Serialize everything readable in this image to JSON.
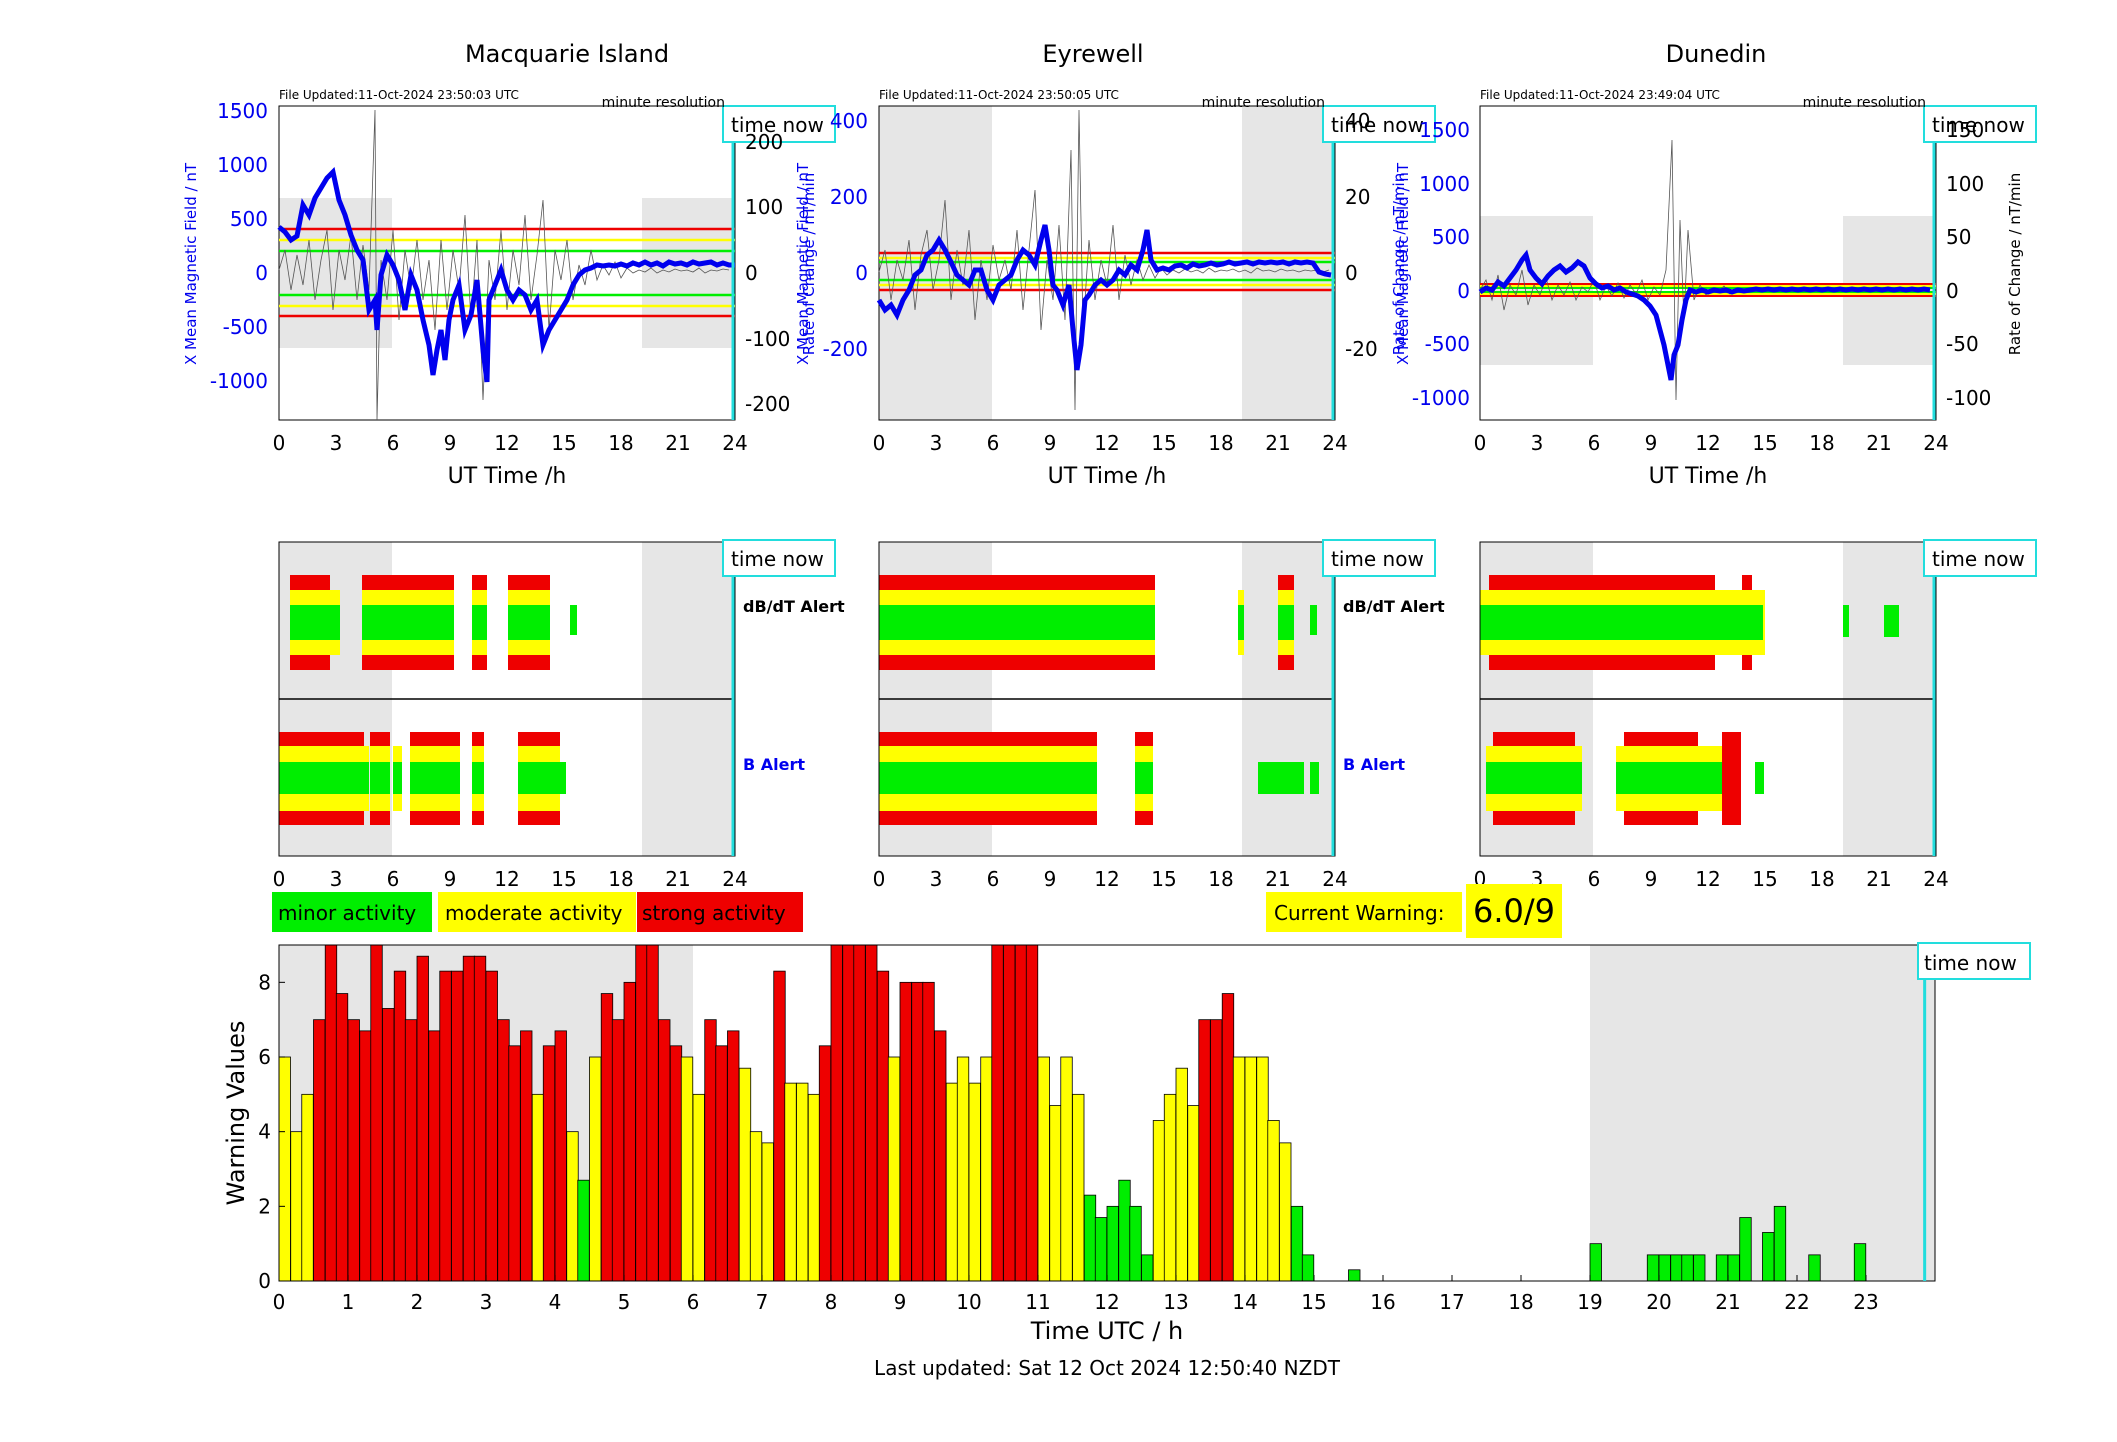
{
  "panels": [
    {
      "title": "Macquarie Island",
      "file_updated": "File Updated:11-Oct-2024 23:50:03 UTC",
      "resolution": "minute resolution",
      "left_ylabel": "X Mean Magnetic Field / nT",
      "right_ylabel": "Rate of Change / nT/min",
      "xlabel": "UT Time /h",
      "left_ticks": [
        "1500",
        "1000",
        "500",
        "0",
        "-500",
        "-1000"
      ],
      "right_ticks": [
        "200",
        "100",
        "0",
        "-100",
        "-200"
      ],
      "x_ticks": [
        "0",
        "3",
        "6",
        "9",
        "12",
        "15",
        "18",
        "21",
        "24"
      ],
      "dbdt_label": "dB/dT Alert",
      "b_label": "B Alert"
    },
    {
      "title": "Eyrewell",
      "file_updated": "File Updated:11-Oct-2024 23:50:05 UTC",
      "resolution": "minute resolution",
      "left_ylabel": "X Mean Magnetic Field / nT",
      "right_ylabel": "Rate of Change / nT/min",
      "xlabel": "UT Time /h",
      "left_ticks": [
        "400",
        "200",
        "0",
        "-200"
      ],
      "right_ticks": [
        "40",
        "20",
        "0",
        "-20"
      ],
      "x_ticks": [
        "0",
        "3",
        "6",
        "9",
        "12",
        "15",
        "18",
        "21",
        "24"
      ],
      "dbdt_label": "dB/dT Alert",
      "b_label": "B Alert"
    },
    {
      "title": "Dunedin",
      "file_updated": "File Updated:11-Oct-2024 23:49:04 UTC",
      "resolution": "minute resolution",
      "left_ylabel": "X Mean Magnetic Field / nT",
      "right_ylabel": "Rate of Change / nT/min",
      "xlabel": "UT Time /h",
      "left_ticks": [
        "1500",
        "1000",
        "500",
        "0",
        "-500",
        "-1000"
      ],
      "right_ticks": [
        "150",
        "100",
        "50",
        "0",
        "-50",
        "-100"
      ],
      "x_ticks": [
        "0",
        "3",
        "6",
        "9",
        "12",
        "15",
        "18",
        "21",
        "24"
      ],
      "dbdt_label": "dB/dT Alert",
      "b_label": "B Alert"
    }
  ],
  "time_now_label": "time now",
  "legend": {
    "minor": "minor activity",
    "moderate": "moderate activity",
    "strong": "strong activity"
  },
  "warning": {
    "label": "Current Warning:",
    "value": "6.0/9"
  },
  "colors": {
    "minor": "#00ee00",
    "moderate": "#ffff00",
    "strong": "#ee0000",
    "field_line": "#0000ee",
    "time_now": "#22dddd",
    "night_shading": "#e6e6e6"
  },
  "footer": {
    "last_updated": "Last updated: Sat 12 Oct 2024 12:50:40 NZDT"
  },
  "chart_data": [
    {
      "type": "bar",
      "ylabel": "Warning Values",
      "xlabel": "Time UTC / h",
      "ylim": [
        0,
        9
      ],
      "xlim": [
        0,
        24
      ],
      "x_ticks": [
        "0",
        "1",
        "2",
        "3",
        "4",
        "5",
        "6",
        "7",
        "8",
        "9",
        "10",
        "11",
        "12",
        "13",
        "14",
        "15",
        "16",
        "17",
        "18",
        "19",
        "20",
        "21",
        "22",
        "23"
      ],
      "y_ticks": [
        "0",
        "2",
        "4",
        "6",
        "8"
      ],
      "bin_hours": 0.1667,
      "night_shading_hours": [
        [
          0,
          6
        ],
        [
          19,
          24
        ]
      ],
      "time_now_hour": 23.85,
      "bars": [
        {
          "x": 0.0,
          "v": 6.0,
          "c": "moderate"
        },
        {
          "x": 0.17,
          "v": 4.0,
          "c": "moderate"
        },
        {
          "x": 0.33,
          "v": 5.0,
          "c": "moderate"
        },
        {
          "x": 0.5,
          "v": 7.0,
          "c": "strong"
        },
        {
          "x": 0.67,
          "v": 9.0,
          "c": "strong"
        },
        {
          "x": 0.83,
          "v": 7.7,
          "c": "strong"
        },
        {
          "x": 1.0,
          "v": 7.0,
          "c": "strong"
        },
        {
          "x": 1.17,
          "v": 6.7,
          "c": "strong"
        },
        {
          "x": 1.33,
          "v": 9.0,
          "c": "strong"
        },
        {
          "x": 1.5,
          "v": 7.3,
          "c": "strong"
        },
        {
          "x": 1.67,
          "v": 8.3,
          "c": "strong"
        },
        {
          "x": 1.83,
          "v": 7.0,
          "c": "strong"
        },
        {
          "x": 2.0,
          "v": 8.7,
          "c": "strong"
        },
        {
          "x": 2.17,
          "v": 6.7,
          "c": "strong"
        },
        {
          "x": 2.33,
          "v": 8.3,
          "c": "strong"
        },
        {
          "x": 2.5,
          "v": 8.3,
          "c": "strong"
        },
        {
          "x": 2.67,
          "v": 8.7,
          "c": "strong"
        },
        {
          "x": 2.83,
          "v": 8.7,
          "c": "strong"
        },
        {
          "x": 3.0,
          "v": 8.3,
          "c": "strong"
        },
        {
          "x": 3.17,
          "v": 7.0,
          "c": "strong"
        },
        {
          "x": 3.33,
          "v": 6.3,
          "c": "strong"
        },
        {
          "x": 3.5,
          "v": 6.7,
          "c": "strong"
        },
        {
          "x": 3.67,
          "v": 5.0,
          "c": "moderate"
        },
        {
          "x": 3.83,
          "v": 6.3,
          "c": "strong"
        },
        {
          "x": 4.0,
          "v": 6.7,
          "c": "strong"
        },
        {
          "x": 4.17,
          "v": 4.0,
          "c": "moderate"
        },
        {
          "x": 4.33,
          "v": 2.7,
          "c": "minor"
        },
        {
          "x": 4.5,
          "v": 6.0,
          "c": "moderate"
        },
        {
          "x": 4.67,
          "v": 7.7,
          "c": "strong"
        },
        {
          "x": 4.83,
          "v": 7.0,
          "c": "strong"
        },
        {
          "x": 5.0,
          "v": 8.0,
          "c": "strong"
        },
        {
          "x": 5.17,
          "v": 9.0,
          "c": "strong"
        },
        {
          "x": 5.33,
          "v": 9.0,
          "c": "strong"
        },
        {
          "x": 5.5,
          "v": 7.0,
          "c": "strong"
        },
        {
          "x": 5.67,
          "v": 6.3,
          "c": "strong"
        },
        {
          "x": 5.83,
          "v": 6.0,
          "c": "moderate"
        },
        {
          "x": 6.0,
          "v": 5.0,
          "c": "moderate"
        },
        {
          "x": 6.17,
          "v": 7.0,
          "c": "strong"
        },
        {
          "x": 6.33,
          "v": 6.3,
          "c": "strong"
        },
        {
          "x": 6.5,
          "v": 6.7,
          "c": "strong"
        },
        {
          "x": 6.67,
          "v": 5.7,
          "c": "moderate"
        },
        {
          "x": 6.83,
          "v": 4.0,
          "c": "moderate"
        },
        {
          "x": 7.0,
          "v": 3.7,
          "c": "moderate"
        },
        {
          "x": 7.17,
          "v": 8.3,
          "c": "strong"
        },
        {
          "x": 7.33,
          "v": 5.3,
          "c": "moderate"
        },
        {
          "x": 7.5,
          "v": 5.3,
          "c": "moderate"
        },
        {
          "x": 7.67,
          "v": 5.0,
          "c": "moderate"
        },
        {
          "x": 7.83,
          "v": 6.3,
          "c": "strong"
        },
        {
          "x": 8.0,
          "v": 9.0,
          "c": "strong"
        },
        {
          "x": 8.17,
          "v": 9.0,
          "c": "strong"
        },
        {
          "x": 8.33,
          "v": 9.0,
          "c": "strong"
        },
        {
          "x": 8.5,
          "v": 9.0,
          "c": "strong"
        },
        {
          "x": 8.67,
          "v": 8.3,
          "c": "strong"
        },
        {
          "x": 8.83,
          "v": 6.0,
          "c": "moderate"
        },
        {
          "x": 9.0,
          "v": 8.0,
          "c": "strong"
        },
        {
          "x": 9.17,
          "v": 8.0,
          "c": "strong"
        },
        {
          "x": 9.33,
          "v": 8.0,
          "c": "strong"
        },
        {
          "x": 9.5,
          "v": 6.7,
          "c": "strong"
        },
        {
          "x": 9.67,
          "v": 5.3,
          "c": "moderate"
        },
        {
          "x": 9.83,
          "v": 6.0,
          "c": "moderate"
        },
        {
          "x": 10.0,
          "v": 5.3,
          "c": "moderate"
        },
        {
          "x": 10.17,
          "v": 6.0,
          "c": "moderate"
        },
        {
          "x": 10.33,
          "v": 9.0,
          "c": "strong"
        },
        {
          "x": 10.5,
          "v": 9.0,
          "c": "strong"
        },
        {
          "x": 10.67,
          "v": 9.0,
          "c": "strong"
        },
        {
          "x": 10.83,
          "v": 9.0,
          "c": "strong"
        },
        {
          "x": 11.0,
          "v": 6.0,
          "c": "moderate"
        },
        {
          "x": 11.17,
          "v": 4.7,
          "c": "moderate"
        },
        {
          "x": 11.33,
          "v": 6.0,
          "c": "moderate"
        },
        {
          "x": 11.5,
          "v": 5.0,
          "c": "moderate"
        },
        {
          "x": 11.67,
          "v": 2.3,
          "c": "minor"
        },
        {
          "x": 11.83,
          "v": 1.7,
          "c": "minor"
        },
        {
          "x": 12.0,
          "v": 2.0,
          "c": "minor"
        },
        {
          "x": 12.17,
          "v": 2.7,
          "c": "minor"
        },
        {
          "x": 12.33,
          "v": 2.0,
          "c": "minor"
        },
        {
          "x": 12.5,
          "v": 0.7,
          "c": "minor"
        },
        {
          "x": 12.67,
          "v": 4.3,
          "c": "moderate"
        },
        {
          "x": 12.83,
          "v": 5.0,
          "c": "moderate"
        },
        {
          "x": 13.0,
          "v": 5.7,
          "c": "moderate"
        },
        {
          "x": 13.17,
          "v": 4.7,
          "c": "moderate"
        },
        {
          "x": 13.33,
          "v": 7.0,
          "c": "strong"
        },
        {
          "x": 13.5,
          "v": 7.0,
          "c": "strong"
        },
        {
          "x": 13.67,
          "v": 7.7,
          "c": "strong"
        },
        {
          "x": 13.83,
          "v": 6.0,
          "c": "moderate"
        },
        {
          "x": 14.0,
          "v": 6.0,
          "c": "moderate"
        },
        {
          "x": 14.17,
          "v": 6.0,
          "c": "moderate"
        },
        {
          "x": 14.33,
          "v": 4.3,
          "c": "moderate"
        },
        {
          "x": 14.5,
          "v": 3.7,
          "c": "moderate"
        },
        {
          "x": 14.67,
          "v": 2.0,
          "c": "minor"
        },
        {
          "x": 14.83,
          "v": 0.7,
          "c": "minor"
        },
        {
          "x": 15.5,
          "v": 0.3,
          "c": "minor"
        },
        {
          "x": 19.0,
          "v": 1.0,
          "c": "minor"
        },
        {
          "x": 19.83,
          "v": 0.7,
          "c": "minor"
        },
        {
          "x": 20.0,
          "v": 0.7,
          "c": "minor"
        },
        {
          "x": 20.17,
          "v": 0.7,
          "c": "minor"
        },
        {
          "x": 20.33,
          "v": 0.7,
          "c": "minor"
        },
        {
          "x": 20.5,
          "v": 0.7,
          "c": "minor"
        },
        {
          "x": 20.83,
          "v": 0.7,
          "c": "minor"
        },
        {
          "x": 21.0,
          "v": 0.7,
          "c": "minor"
        },
        {
          "x": 21.17,
          "v": 1.7,
          "c": "minor"
        },
        {
          "x": 21.5,
          "v": 1.3,
          "c": "minor"
        },
        {
          "x": 21.67,
          "v": 2.0,
          "c": "minor"
        },
        {
          "x": 22.17,
          "v": 0.7,
          "c": "minor"
        },
        {
          "x": 22.83,
          "v": 1.0,
          "c": "minor"
        }
      ]
    }
  ]
}
